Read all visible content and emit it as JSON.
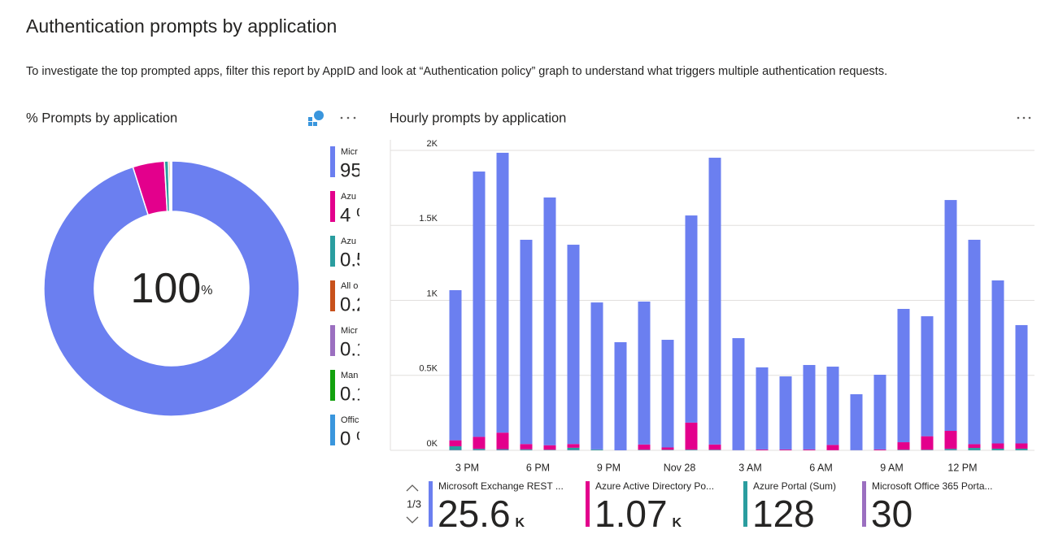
{
  "header": {
    "title": "Authentication prompts by application",
    "description": "To investigate the top prompted apps, filter this report by AppID and look at “Authentication policy” graph to understand what triggers multiple authentication requests."
  },
  "chart_data": [
    {
      "type": "donut",
      "title": "% Prompts by application",
      "center_value": 100,
      "center_unit": "%",
      "categories": [
        "Micr",
        "Azu",
        "Azu",
        "All o",
        "Micr",
        "Man",
        "Offic"
      ],
      "values": [
        95,
        4,
        0.5,
        0.2,
        0.1,
        0.1,
        0
      ],
      "value_labels": [
        "95",
        "4 %",
        "0.5",
        "0.2",
        "0.1",
        "0.1",
        "0 %"
      ],
      "colors": [
        "#6b7ff0",
        "#e3008c",
        "#2a9d9f",
        "#c8511b",
        "#9b6fc0",
        "#13a10e",
        "#3a96dd"
      ]
    },
    {
      "type": "bar",
      "stacked": true,
      "title": "Hourly prompts by application",
      "categories": [
        null,
        null,
        null,
        null,
        null,
        null,
        null,
        null,
        null,
        null,
        null,
        null,
        null,
        null,
        null,
        null,
        null,
        null,
        null,
        null,
        null,
        null,
        null,
        null,
        null
      ],
      "x_labels": [
        "3 PM",
        "6 PM",
        "9 PM",
        "Nov 28",
        "3 AM",
        "6 AM",
        "9 AM",
        "12 PM"
      ],
      "ylim": [
        0,
        2000
      ],
      "yticks": [
        {
          "value": 0,
          "label": "0K"
        },
        {
          "value": 500,
          "label": "0.5K"
        },
        {
          "value": 1000,
          "label": "1K"
        },
        {
          "value": 1500,
          "label": "1.5K"
        },
        {
          "value": 2000,
          "label": "2K"
        }
      ],
      "grid": true,
      "legend_page": "1/3",
      "series": [
        {
          "name": "Microsoft Exchange REST ...",
          "color": "#6b7ff0",
          "total": 25.6,
          "total_unit": "K",
          "values": [
            1001,
            1769,
            1866,
            1362,
            1652,
            1329,
            980,
            721,
            953,
            718,
            1381,
            1912,
            747,
            547,
            487,
            563,
            522,
            373,
            498,
            889,
            800,
            1539,
            1363,
            1087,
            789
          ]
        },
        {
          "name": "Azure Active Directory Po...",
          "color": "#e3008c",
          "total": 1.07,
          "total_unit": "K",
          "values": [
            40,
            80,
            110,
            35,
            30,
            25,
            0,
            0,
            35,
            15,
            180,
            35,
            0,
            5,
            5,
            5,
            35,
            0,
            5,
            50,
            90,
            120,
            25,
            35,
            35
          ]
        },
        {
          "name": "Azure Portal (Sum)",
          "color": "#2a9d9f",
          "total": 128,
          "values": [
            25,
            8,
            5,
            5,
            3,
            15,
            5,
            0,
            3,
            3,
            3,
            3,
            0,
            0,
            0,
            0,
            0,
            0,
            0,
            3,
            3,
            8,
            15,
            10,
            10
          ]
        },
        {
          "name": "Microsoft Office 365 Porta...",
          "color": "#9b6fc0",
          "total": 30,
          "values": [
            2,
            2,
            3,
            2,
            1,
            2,
            1,
            0,
            1,
            1,
            2,
            1,
            1,
            1,
            1,
            1,
            1,
            1,
            1,
            1,
            1,
            2,
            1,
            1,
            1
          ]
        }
      ]
    }
  ]
}
